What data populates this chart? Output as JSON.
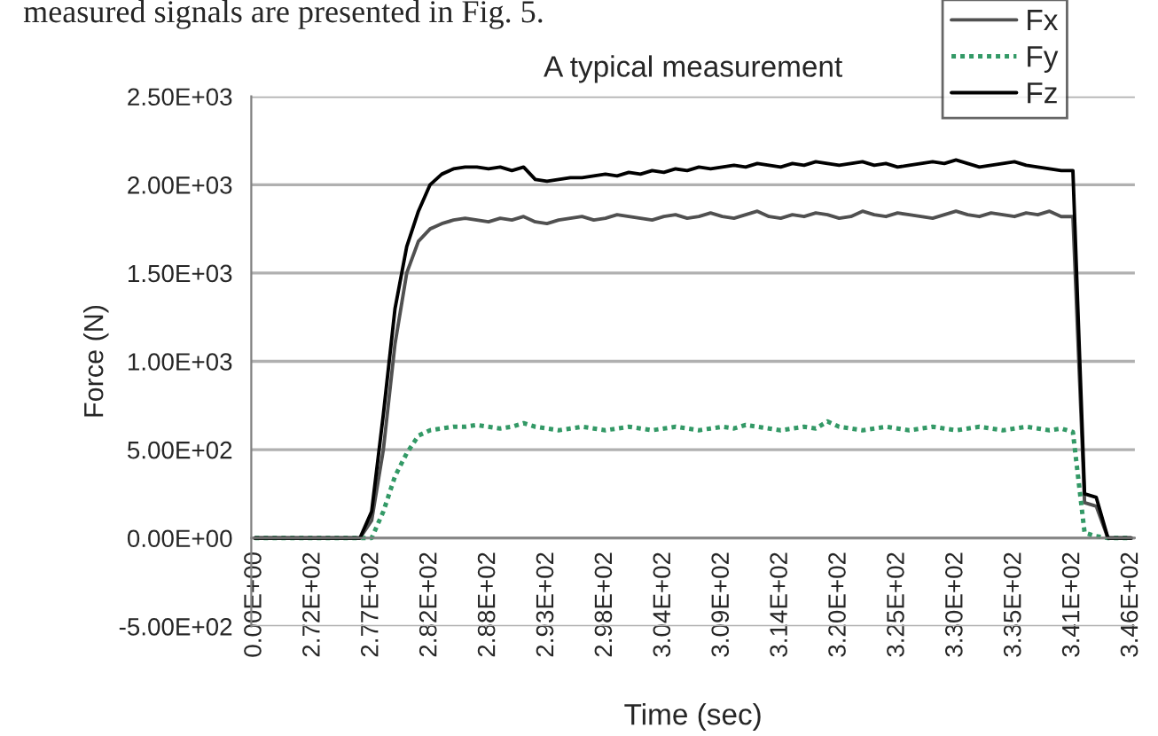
{
  "chart_data": {
    "type": "line",
    "title": "A typical measurement",
    "xlabel": "Time (sec)",
    "ylabel": "Force (N)",
    "annotations": [
      "measured signals are presented in Fig. 5."
    ],
    "categories": [
      "0.00E+00",
      null,
      null,
      null,
      null,
      "2.72E+02",
      null,
      null,
      null,
      null,
      "2.77E+02",
      null,
      null,
      null,
      null,
      "2.82E+02",
      null,
      null,
      null,
      null,
      "2.88E+02",
      null,
      null,
      null,
      null,
      "2.93E+02",
      null,
      null,
      null,
      null,
      "2.98E+02",
      null,
      null,
      null,
      null,
      "3.04E+02",
      null,
      null,
      null,
      null,
      "3.09E+02",
      null,
      null,
      null,
      null,
      "3.14E+02",
      null,
      null,
      null,
      null,
      "3.20E+02",
      null,
      null,
      null,
      null,
      "3.25E+02",
      null,
      null,
      null,
      null,
      "3.30E+02",
      null,
      null,
      null,
      null,
      "3.35E+02",
      null,
      null,
      null,
      null,
      "3.41E+02",
      null,
      null,
      null,
      null,
      "3.46E+02"
    ],
    "series": [
      {
        "name": "Fx",
        "color": "#505050",
        "line_style": "solid",
        "values": [
          0,
          0,
          0,
          0,
          0,
          0,
          0,
          0,
          0,
          0,
          100,
          500,
          1100,
          1500,
          1680,
          1750,
          1780,
          1800,
          1810,
          1800,
          1790,
          1810,
          1800,
          1820,
          1790,
          1780,
          1800,
          1810,
          1820,
          1800,
          1810,
          1830,
          1820,
          1810,
          1800,
          1820,
          1830,
          1810,
          1820,
          1840,
          1820,
          1810,
          1830,
          1850,
          1820,
          1810,
          1830,
          1820,
          1840,
          1830,
          1810,
          1820,
          1850,
          1830,
          1820,
          1840,
          1830,
          1820,
          1810,
          1830,
          1850,
          1830,
          1820,
          1840,
          1830,
          1820,
          1840,
          1830,
          1850,
          1820,
          1820,
          200,
          180,
          0,
          0,
          0
        ]
      },
      {
        "name": "Fy",
        "color": "#339966",
        "line_style": "dotted",
        "values": [
          0,
          0,
          0,
          0,
          0,
          0,
          0,
          0,
          0,
          0,
          0,
          150,
          350,
          480,
          580,
          610,
          620,
          630,
          630,
          640,
          630,
          620,
          630,
          650,
          630,
          620,
          610,
          620,
          630,
          620,
          610,
          620,
          630,
          620,
          610,
          620,
          630,
          620,
          610,
          620,
          630,
          620,
          640,
          630,
          620,
          610,
          620,
          630,
          620,
          660,
          630,
          620,
          610,
          620,
          630,
          620,
          610,
          620,
          630,
          620,
          610,
          620,
          630,
          620,
          610,
          620,
          630,
          620,
          610,
          620,
          600,
          30,
          10,
          0,
          0,
          0
        ]
      },
      {
        "name": "Fz",
        "color": "#000000",
        "line_style": "solid",
        "values": [
          0,
          0,
          0,
          0,
          0,
          0,
          0,
          0,
          0,
          0,
          150,
          700,
          1300,
          1650,
          1850,
          2000,
          2060,
          2090,
          2100,
          2100,
          2090,
          2100,
          2080,
          2100,
          2030,
          2020,
          2030,
          2040,
          2040,
          2050,
          2060,
          2050,
          2070,
          2060,
          2080,
          2070,
          2090,
          2080,
          2100,
          2090,
          2100,
          2110,
          2100,
          2120,
          2110,
          2100,
          2120,
          2110,
          2130,
          2120,
          2110,
          2120,
          2130,
          2110,
          2120,
          2100,
          2110,
          2120,
          2130,
          2120,
          2140,
          2120,
          2100,
          2110,
          2120,
          2130,
          2110,
          2100,
          2090,
          2080,
          2080,
          250,
          230,
          0,
          0,
          0
        ]
      }
    ],
    "ylim": [
      -500,
      2500
    ],
    "yticks": [
      {
        "value": -500,
        "label": "-5.00E+02"
      },
      {
        "value": 0,
        "label": "0.00E+00"
      },
      {
        "value": 500,
        "label": "5.00E+02"
      },
      {
        "value": 1000,
        "label": "1.00E+03"
      },
      {
        "value": 1500,
        "label": "1.50E+03"
      },
      {
        "value": 2000,
        "label": "2.00E+03"
      },
      {
        "value": 2500,
        "label": "2.50E+03"
      }
    ],
    "grid": "y",
    "legend": "top right",
    "marker": "none"
  }
}
